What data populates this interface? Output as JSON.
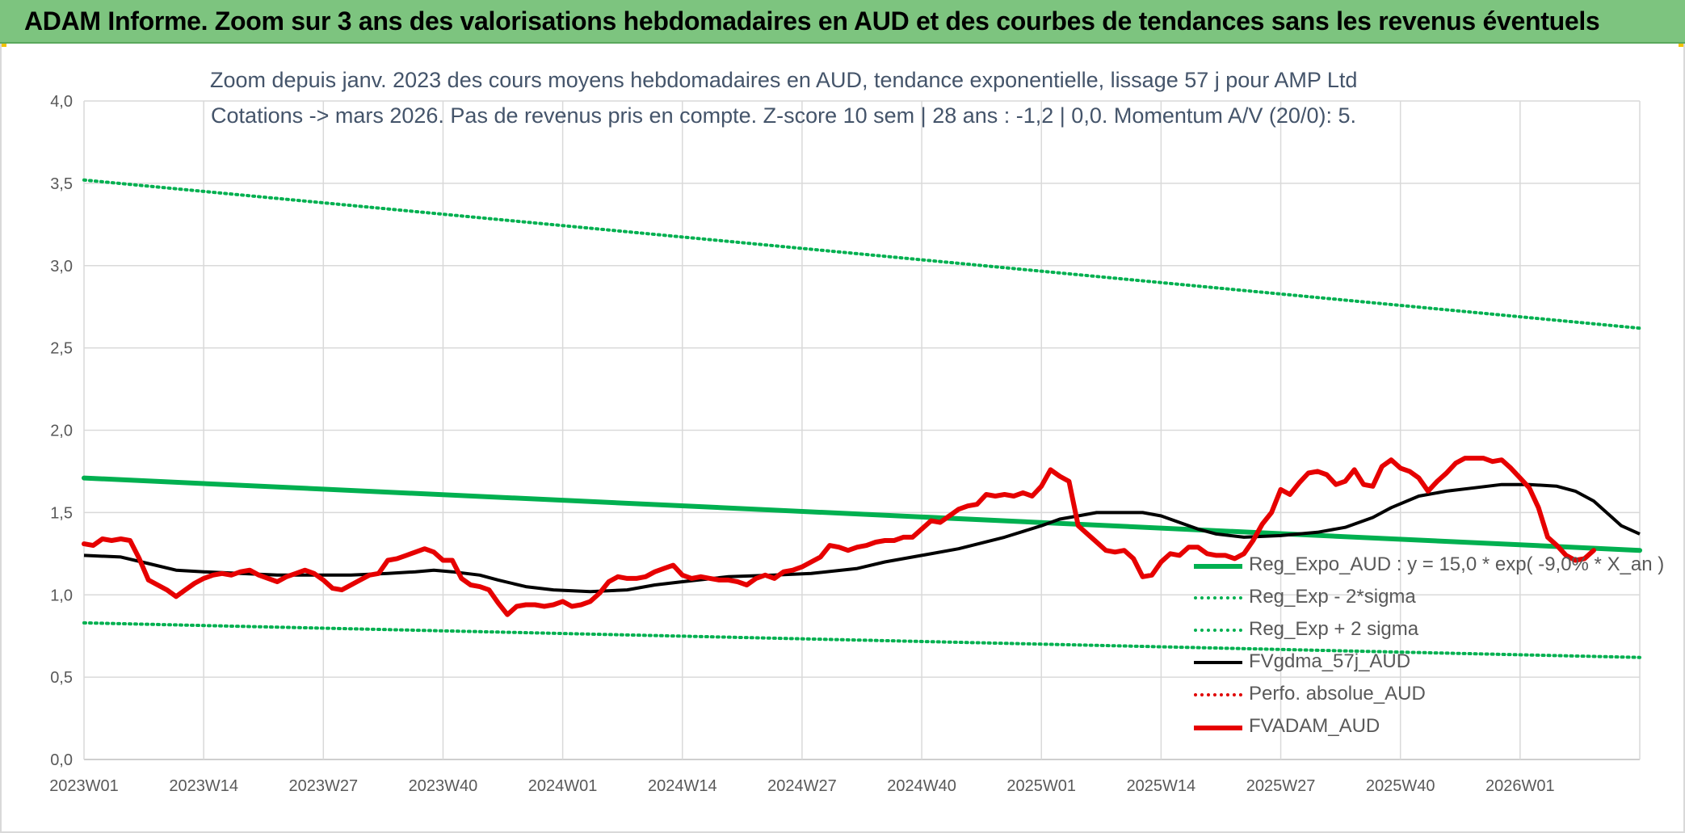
{
  "banner": {
    "title": "ADAM Informe. Zoom sur 3 ans des valorisations hebdomadaires en AUD et des courbes de tendances sans les revenus éventuels"
  },
  "chart_data": {
    "type": "line",
    "title": "Zoom depuis janv. 2023 des cours moyens hebdomadaires en AUD, tendance exponentielle, lissage 57 j pour AMP Ltd",
    "subtitle": "Cotations -> mars 2026. Pas de revenus pris en compte. Z-score 10 sem | 28 ans : -1,2 | 0,0. Momentum A/V (20/0): 5.",
    "xlabel": "",
    "ylabel": "",
    "ylim": [
      0,
      4
    ],
    "y_ticks": [
      "0,0",
      "0,5",
      "1,0",
      "1,5",
      "2,0",
      "2,5",
      "3,0",
      "3,5",
      "4,0"
    ],
    "x_ticks": [
      "2023W01",
      "2023W14",
      "2023W27",
      "2023W40",
      "2024W01",
      "2024W14",
      "2024W27",
      "2024W40",
      "2025W01",
      "2025W14",
      "2025W27",
      "2025W40",
      "2026W01"
    ],
    "x_range_weeks": [
      0,
      169
    ],
    "grid": true,
    "legend_position": "bottom-right",
    "series": [
      {
        "name": "Reg_Expo_AUD : y = 15,0 * exp( -9,0% * X_an )",
        "color": "#00b050",
        "style": "solid-thick",
        "points": [
          [
            0,
            1.71
          ],
          [
            169,
            1.27
          ]
        ]
      },
      {
        "name": "Reg_Exp - 2*sigma",
        "color": "#00b050",
        "style": "dotted",
        "points": [
          [
            0,
            0.83
          ],
          [
            169,
            0.62
          ]
        ]
      },
      {
        "name": "Reg_Exp + 2 sigma",
        "color": "#00b050",
        "style": "dotted",
        "points": [
          [
            0,
            3.52
          ],
          [
            169,
            2.62
          ]
        ]
      },
      {
        "name": "FVgdma_57j_AUD",
        "color": "#000000",
        "style": "solid",
        "points": [
          [
            0,
            1.24
          ],
          [
            4,
            1.23
          ],
          [
            7,
            1.19
          ],
          [
            10,
            1.15
          ],
          [
            13,
            1.14
          ],
          [
            17,
            1.13
          ],
          [
            21,
            1.12
          ],
          [
            24,
            1.12
          ],
          [
            29,
            1.12
          ],
          [
            33,
            1.13
          ],
          [
            36,
            1.14
          ],
          [
            38,
            1.15
          ],
          [
            40,
            1.14
          ],
          [
            43,
            1.12
          ],
          [
            45,
            1.09
          ],
          [
            48,
            1.05
          ],
          [
            51,
            1.03
          ],
          [
            55,
            1.02
          ],
          [
            59,
            1.03
          ],
          [
            62,
            1.06
          ],
          [
            65,
            1.08
          ],
          [
            70,
            1.11
          ],
          [
            75,
            1.12
          ],
          [
            79,
            1.13
          ],
          [
            84,
            1.16
          ],
          [
            87,
            1.2
          ],
          [
            91,
            1.24
          ],
          [
            95,
            1.28
          ],
          [
            100,
            1.35
          ],
          [
            104,
            1.42
          ],
          [
            106,
            1.46
          ],
          [
            108,
            1.48
          ],
          [
            110,
            1.5
          ],
          [
            112,
            1.5
          ],
          [
            115,
            1.5
          ],
          [
            117,
            1.48
          ],
          [
            119,
            1.44
          ],
          [
            121,
            1.4
          ],
          [
            123,
            1.37
          ],
          [
            126,
            1.35
          ],
          [
            130,
            1.36
          ],
          [
            134,
            1.38
          ],
          [
            137,
            1.41
          ],
          [
            140,
            1.47
          ],
          [
            142,
            1.53
          ],
          [
            145,
            1.6
          ],
          [
            148,
            1.63
          ],
          [
            151,
            1.65
          ],
          [
            154,
            1.67
          ],
          [
            157,
            1.67
          ],
          [
            160,
            1.66
          ],
          [
            162,
            1.63
          ],
          [
            164,
            1.57
          ],
          [
            166,
            1.47
          ],
          [
            167,
            1.42
          ],
          [
            169,
            1.37
          ]
        ]
      },
      {
        "name": "Perfo. absolue_AUD",
        "color": "#e00000",
        "style": "dotted",
        "points": []
      },
      {
        "name": "FVADAM_AUD",
        "color": "#e60000",
        "style": "solid-thick",
        "points": [
          [
            0,
            1.31
          ],
          [
            1,
            1.3
          ],
          [
            2,
            1.34
          ],
          [
            3,
            1.33
          ],
          [
            4,
            1.34
          ],
          [
            5,
            1.33
          ],
          [
            6,
            1.22
          ],
          [
            7,
            1.09
          ],
          [
            8,
            1.06
          ],
          [
            9,
            1.03
          ],
          [
            10,
            0.99
          ],
          [
            11,
            1.03
          ],
          [
            12,
            1.07
          ],
          [
            13,
            1.1
          ],
          [
            14,
            1.12
          ],
          [
            15,
            1.13
          ],
          [
            16,
            1.12
          ],
          [
            17,
            1.14
          ],
          [
            18,
            1.15
          ],
          [
            19,
            1.12
          ],
          [
            20,
            1.1
          ],
          [
            21,
            1.08
          ],
          [
            22,
            1.11
          ],
          [
            23,
            1.13
          ],
          [
            24,
            1.15
          ],
          [
            25,
            1.13
          ],
          [
            26,
            1.09
          ],
          [
            27,
            1.04
          ],
          [
            28,
            1.03
          ],
          [
            29,
            1.06
          ],
          [
            30,
            1.09
          ],
          [
            31,
            1.12
          ],
          [
            32,
            1.13
          ],
          [
            33,
            1.21
          ],
          [
            34,
            1.22
          ],
          [
            35,
            1.24
          ],
          [
            36,
            1.26
          ],
          [
            37,
            1.28
          ],
          [
            38,
            1.26
          ],
          [
            39,
            1.21
          ],
          [
            40,
            1.21
          ],
          [
            41,
            1.1
          ],
          [
            42,
            1.06
          ],
          [
            43,
            1.05
          ],
          [
            44,
            1.03
          ],
          [
            45,
            0.95
          ],
          [
            46,
            0.88
          ],
          [
            47,
            0.93
          ],
          [
            48,
            0.94
          ],
          [
            49,
            0.94
          ],
          [
            50,
            0.93
          ],
          [
            51,
            0.94
          ],
          [
            52,
            0.96
          ],
          [
            53,
            0.93
          ],
          [
            54,
            0.94
          ],
          [
            55,
            0.96
          ],
          [
            56,
            1.01
          ],
          [
            57,
            1.08
          ],
          [
            58,
            1.11
          ],
          [
            59,
            1.1
          ],
          [
            60,
            1.1
          ],
          [
            61,
            1.11
          ],
          [
            62,
            1.14
          ],
          [
            63,
            1.16
          ],
          [
            64,
            1.18
          ],
          [
            65,
            1.12
          ],
          [
            66,
            1.1
          ],
          [
            67,
            1.11
          ],
          [
            68,
            1.1
          ],
          [
            69,
            1.09
          ],
          [
            70,
            1.09
          ],
          [
            71,
            1.08
          ],
          [
            72,
            1.06
          ],
          [
            73,
            1.1
          ],
          [
            74,
            1.12
          ],
          [
            75,
            1.1
          ],
          [
            76,
            1.14
          ],
          [
            77,
            1.15
          ],
          [
            78,
            1.17
          ],
          [
            79,
            1.2
          ],
          [
            80,
            1.23
          ],
          [
            81,
            1.3
          ],
          [
            82,
            1.29
          ],
          [
            83,
            1.27
          ],
          [
            84,
            1.29
          ],
          [
            85,
            1.3
          ],
          [
            86,
            1.32
          ],
          [
            87,
            1.33
          ],
          [
            88,
            1.33
          ],
          [
            89,
            1.35
          ],
          [
            90,
            1.35
          ],
          [
            91,
            1.4
          ],
          [
            92,
            1.45
          ],
          [
            93,
            1.44
          ],
          [
            94,
            1.48
          ],
          [
            95,
            1.52
          ],
          [
            96,
            1.54
          ],
          [
            97,
            1.55
          ],
          [
            98,
            1.61
          ],
          [
            99,
            1.6
          ],
          [
            100,
            1.61
          ],
          [
            101,
            1.6
          ],
          [
            102,
            1.62
          ],
          [
            103,
            1.6
          ],
          [
            104,
            1.66
          ],
          [
            105,
            1.76
          ],
          [
            106,
            1.72
          ],
          [
            107,
            1.69
          ],
          [
            108,
            1.42
          ],
          [
            109,
            1.37
          ],
          [
            110,
            1.32
          ],
          [
            111,
            1.27
          ],
          [
            112,
            1.26
          ],
          [
            113,
            1.27
          ],
          [
            114,
            1.22
          ],
          [
            115,
            1.11
          ],
          [
            116,
            1.12
          ],
          [
            117,
            1.2
          ],
          [
            118,
            1.25
          ],
          [
            119,
            1.24
          ],
          [
            120,
            1.29
          ],
          [
            121,
            1.29
          ],
          [
            122,
            1.25
          ],
          [
            123,
            1.24
          ],
          [
            124,
            1.24
          ],
          [
            125,
            1.22
          ],
          [
            126,
            1.25
          ],
          [
            127,
            1.33
          ],
          [
            128,
            1.43
          ],
          [
            129,
            1.5
          ],
          [
            130,
            1.64
          ],
          [
            131,
            1.61
          ],
          [
            132,
            1.68
          ],
          [
            133,
            1.74
          ],
          [
            134,
            1.75
          ],
          [
            135,
            1.73
          ],
          [
            136,
            1.67
          ],
          [
            137,
            1.69
          ],
          [
            138,
            1.76
          ],
          [
            139,
            1.67
          ],
          [
            140,
            1.66
          ],
          [
            141,
            1.78
          ],
          [
            142,
            1.82
          ],
          [
            143,
            1.77
          ],
          [
            144,
            1.75
          ],
          [
            145,
            1.71
          ],
          [
            146,
            1.63
          ],
          [
            147,
            1.69
          ],
          [
            148,
            1.74
          ],
          [
            149,
            1.8
          ],
          [
            150,
            1.83
          ],
          [
            151,
            1.83
          ],
          [
            152,
            1.83
          ],
          [
            153,
            1.81
          ],
          [
            154,
            1.82
          ],
          [
            155,
            1.77
          ],
          [
            156,
            1.71
          ],
          [
            157,
            1.65
          ],
          [
            158,
            1.53
          ],
          [
            159,
            1.35
          ],
          [
            160,
            1.3
          ],
          [
            161,
            1.24
          ],
          [
            162,
            1.21
          ],
          [
            163,
            1.22
          ],
          [
            164,
            1.27
          ]
        ]
      }
    ]
  }
}
